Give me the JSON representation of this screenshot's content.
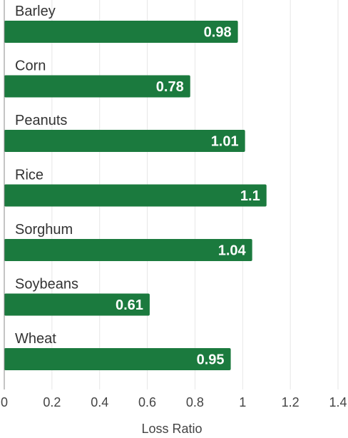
{
  "chart_data": {
    "type": "bar",
    "orientation": "horizontal",
    "categories": [
      "Barley",
      "Corn",
      "Peanuts",
      "Rice",
      "Sorghum",
      "Soybeans",
      "Wheat"
    ],
    "values": [
      0.98,
      0.78,
      1.01,
      1.1,
      1.04,
      0.61,
      0.95
    ],
    "value_labels": [
      "0.98",
      "0.78",
      "1.01",
      "1.1",
      "1.04",
      "0.61",
      "0.95"
    ],
    "xlabel": "Loss Ratio",
    "xlim": [
      0,
      1.4
    ],
    "xticks": [
      0,
      0.2,
      0.4,
      0.6,
      0.8,
      1,
      1.2,
      1.4
    ],
    "xtick_labels": [
      "0",
      "0.2",
      "0.4",
      "0.6",
      "0.8",
      "1",
      "1.2",
      "1.4"
    ],
    "grid": true,
    "bar_color": "#1b7a3e"
  }
}
